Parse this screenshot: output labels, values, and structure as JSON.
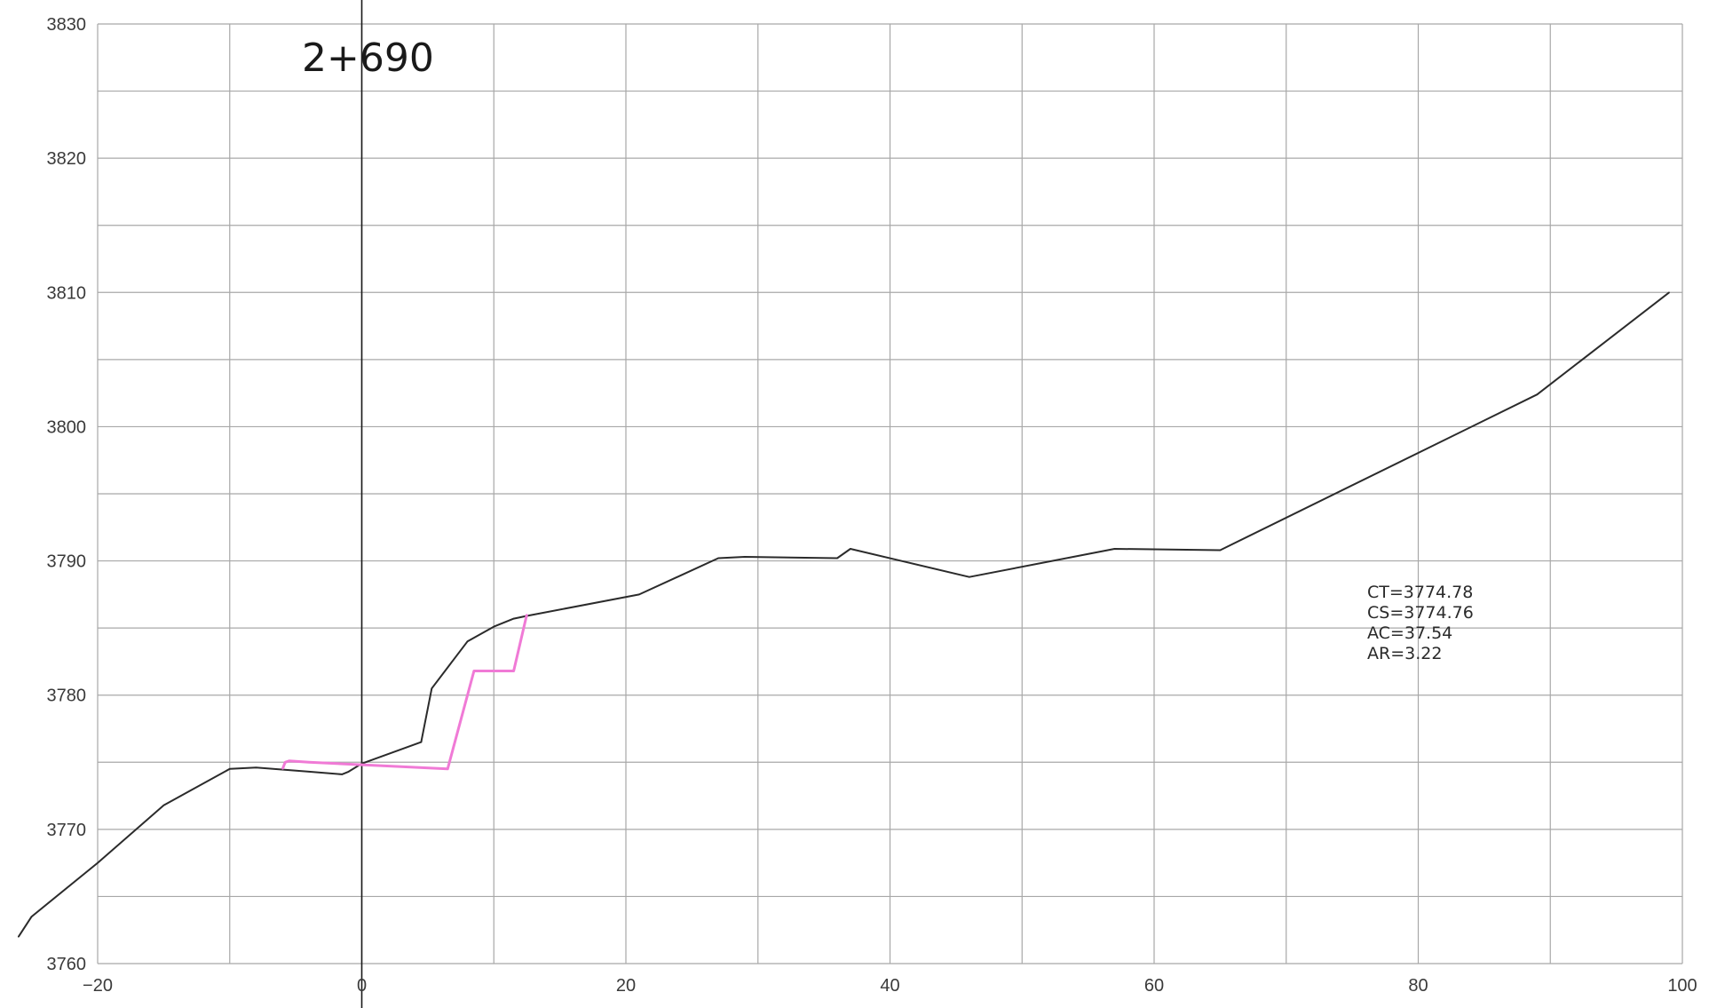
{
  "colors": {
    "background": "#ffffff",
    "grid": "#a8a8a8",
    "ground": "#2b2b2b",
    "design": "#f07ad6"
  },
  "chart_data": {
    "type": "line",
    "title": "2+690",
    "xlabel": "",
    "ylabel": "",
    "xlim": [
      -20,
      100
    ],
    "ylim": [
      3760,
      3830
    ],
    "x_ticks": [
      -20,
      0,
      20,
      40,
      60,
      80,
      100
    ],
    "x_tick_labels": [
      "−20",
      "0",
      "20",
      "40",
      "60",
      "80",
      "100"
    ],
    "y_ticks": [
      3760,
      3770,
      3780,
      3790,
      3800,
      3810,
      3820,
      3830
    ],
    "y_tick_labels": [
      "3760",
      "3770",
      "3780",
      "3790",
      "3800",
      "3810",
      "3820",
      "3830"
    ],
    "x_grid_step": 10,
    "y_grid_step": 5,
    "grid": true,
    "centerline_x": 0,
    "series": [
      {
        "key": "ground",
        "color": "#2b2b2b",
        "x": [
          -26,
          -25,
          -20,
          -15,
          -10,
          -8,
          -4,
          -1.5,
          -1,
          0,
          4.5,
          5.3,
          8,
          10,
          11.5,
          12.5,
          21,
          27,
          29,
          36,
          37,
          46,
          57,
          65,
          89,
          99
        ],
        "y": [
          3762,
          3763.5,
          3767.5,
          3771.8,
          3774.5,
          3774.6,
          3774.3,
          3774.1,
          3774.3,
          3774.9,
          3776.5,
          3780.5,
          3784,
          3785.1,
          3785.7,
          3785.9,
          3787.5,
          3790.2,
          3790.3,
          3790.2,
          3790.9,
          3788.8,
          3790.9,
          3790.8,
          3802.4,
          3810
        ]
      },
      {
        "key": "design",
        "color": "#f07ad6",
        "x": [
          -6,
          -5.8,
          -5.5,
          -4,
          6.5,
          8.5,
          11.5,
          12.5
        ],
        "y": [
          3774.5,
          3775,
          3775.1,
          3775,
          3774.5,
          3781.8,
          3781.8,
          3786
        ]
      }
    ],
    "annotations": [
      "CT=3774.78",
      "CS=3774.76",
      "AC=37.54",
      "AR=3.22"
    ]
  }
}
